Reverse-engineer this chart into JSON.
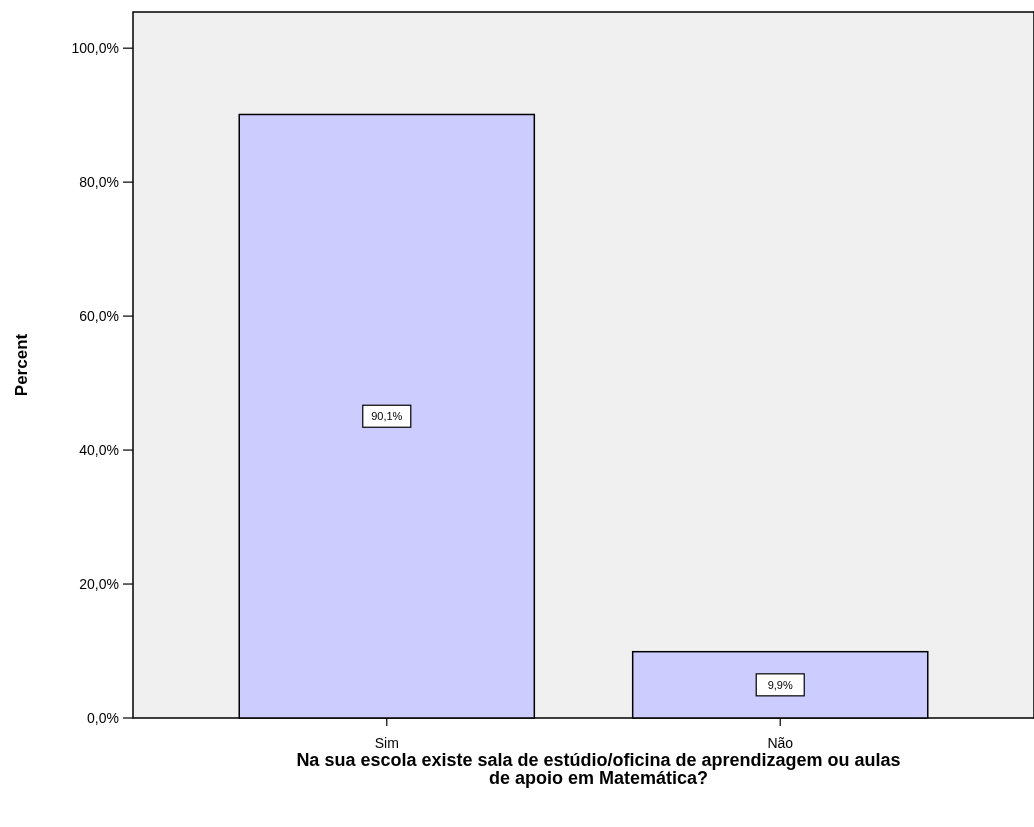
{
  "chart_data": {
    "type": "bar",
    "xlabel": "Na sua escola existe sala de estúdio/oficina de aprendizagem ou aulas de apoio em Matemática?",
    "ylabel": "Percent",
    "categories": [
      "Sim",
      "Não"
    ],
    "values": [
      90.1,
      9.9
    ],
    "color": "#ccccff",
    "value_labels": [
      "90,1%",
      "9,9%"
    ],
    "ylim": [
      0,
      105.4
    ],
    "yticks": [
      {
        "value": 0,
        "label": "0,0%"
      },
      {
        "value": 20,
        "label": "20,0%"
      },
      {
        "value": 40,
        "label": "40,0%"
      },
      {
        "value": 60,
        "label": "60,0%"
      },
      {
        "value": 80,
        "label": "80,0%"
      },
      {
        "value": 100,
        "label": "100,0%"
      }
    ],
    "grid": false
  }
}
